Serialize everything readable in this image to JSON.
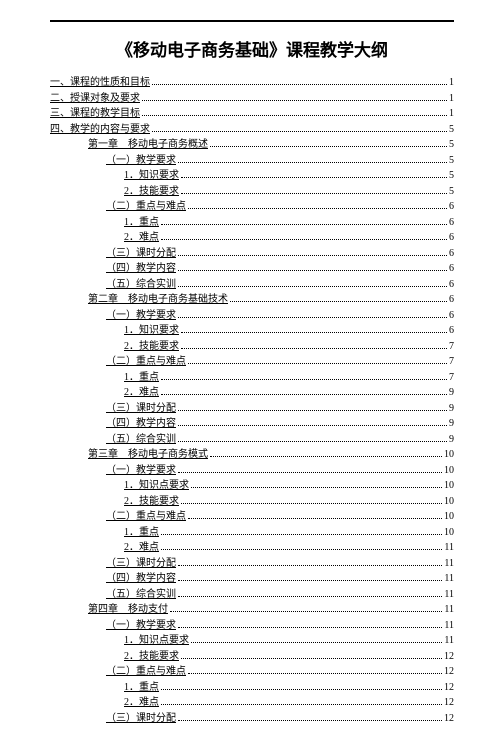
{
  "title": "《移动电子商务基础》课程教学大纲",
  "toc": [
    {
      "label": "一、课程的性质和目标",
      "page": "1",
      "level": 0
    },
    {
      "label": "二、授课对象及要求",
      "page": "1",
      "level": 0
    },
    {
      "label": "三、课程的教学目标",
      "page": "1",
      "level": 0
    },
    {
      "label": "四、教学的内容与要求",
      "page": "5",
      "level": 0
    },
    {
      "label": "第一章　移动电子商务概述",
      "page": "5",
      "level": 1
    },
    {
      "label": "（一）教学要求",
      "page": "5",
      "level": 2
    },
    {
      "label": "1．知识要求",
      "page": "5",
      "level": 3
    },
    {
      "label": "2．技能要求",
      "page": "5",
      "level": 3
    },
    {
      "label": "（二）重点与难点",
      "page": "6",
      "level": 2
    },
    {
      "label": "1．重点",
      "page": "6",
      "level": 3
    },
    {
      "label": "2．难点",
      "page": "6",
      "level": 3
    },
    {
      "label": "（三）课时分配",
      "page": "6",
      "level": 2
    },
    {
      "label": "（四）教学内容",
      "page": "6",
      "level": 2
    },
    {
      "label": "（五）综合实训",
      "page": "6",
      "level": 2
    },
    {
      "label": "第二章　移动电子商务基础技术",
      "page": "6",
      "level": 1
    },
    {
      "label": "（一）教学要求",
      "page": "6",
      "level": 2
    },
    {
      "label": "1．知识要求",
      "page": "6",
      "level": 3
    },
    {
      "label": "2．技能要求",
      "page": "7",
      "level": 3
    },
    {
      "label": "（二）重点与难点",
      "page": "7",
      "level": 2
    },
    {
      "label": "1．重点",
      "page": "7",
      "level": 3
    },
    {
      "label": "2．难点",
      "page": "9",
      "level": 3
    },
    {
      "label": "（三）课时分配",
      "page": "9",
      "level": 2
    },
    {
      "label": "（四）教学内容",
      "page": "9",
      "level": 2
    },
    {
      "label": "（五）综合实训",
      "page": "9",
      "level": 2
    },
    {
      "label": "第三章　移动电子商务模式",
      "page": "10",
      "level": 1
    },
    {
      "label": "（一）教学要求",
      "page": "10",
      "level": 2
    },
    {
      "label": "1．知识点要求",
      "page": "10",
      "level": 3
    },
    {
      "label": "2．技能要求",
      "page": "10",
      "level": 3
    },
    {
      "label": "（二）重点与难点",
      "page": "10",
      "level": 2
    },
    {
      "label": "1．重点",
      "page": "10",
      "level": 3
    },
    {
      "label": "2．难点",
      "page": "11",
      "level": 3
    },
    {
      "label": "（三）课时分配",
      "page": "11",
      "level": 2
    },
    {
      "label": "（四）教学内容",
      "page": "11",
      "level": 2
    },
    {
      "label": "（五）综合实训",
      "page": "11",
      "level": 2
    },
    {
      "label": "第四章　移动支付",
      "page": "11",
      "level": 1
    },
    {
      "label": "（一）教学要求",
      "page": "11",
      "level": 2
    },
    {
      "label": "1．知识点要求",
      "page": "11",
      "level": 3
    },
    {
      "label": "2．技能要求",
      "page": "12",
      "level": 3
    },
    {
      "label": "（二）重点与难点",
      "page": "12",
      "level": 2
    },
    {
      "label": "1．重点",
      "page": "12",
      "level": 3
    },
    {
      "label": "2．难点",
      "page": "12",
      "level": 3
    },
    {
      "label": "（三）课时分配",
      "page": "12",
      "level": 2
    }
  ]
}
